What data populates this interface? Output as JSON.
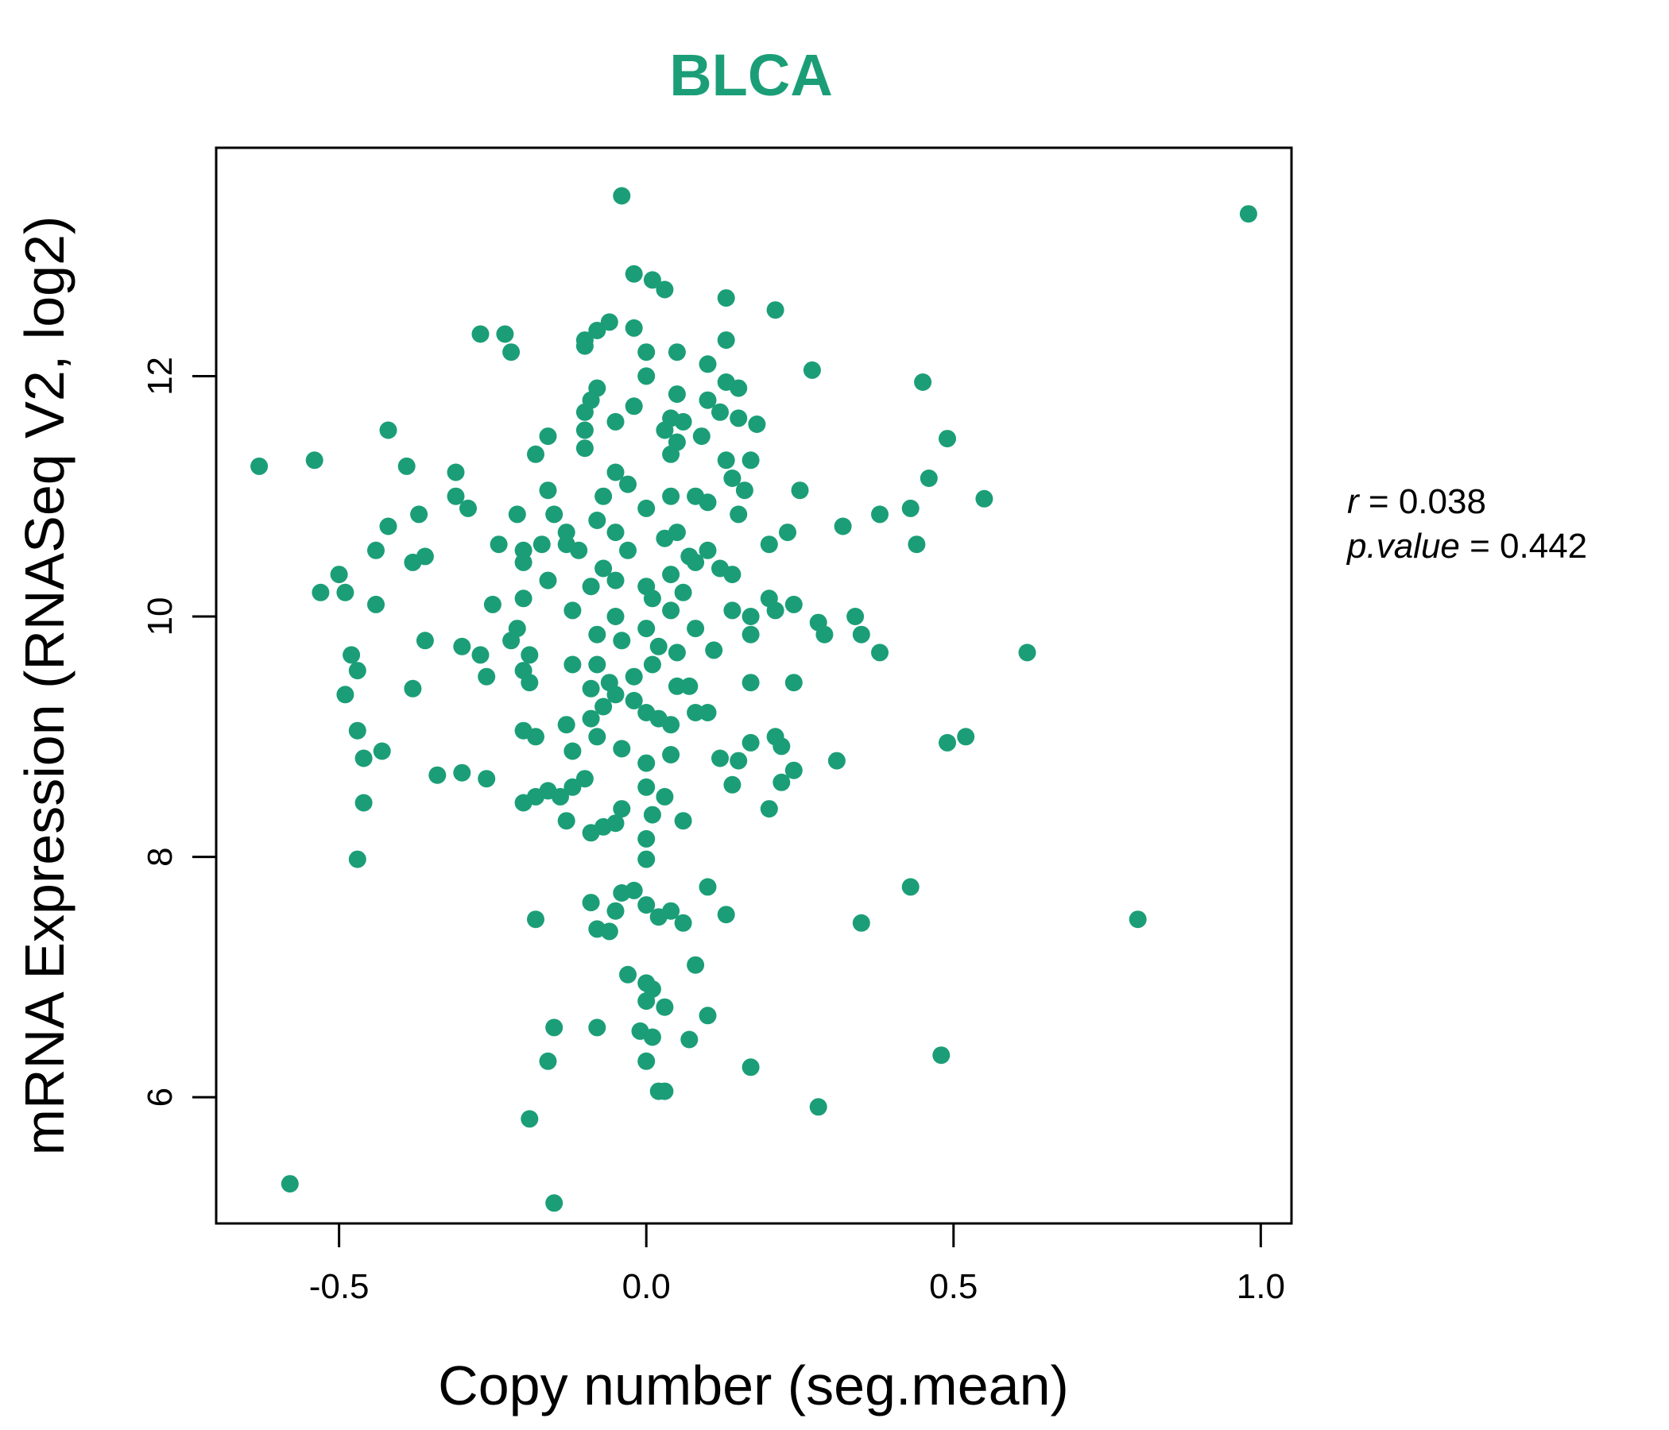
{
  "chart_data": {
    "type": "scatter",
    "title": "BLCA",
    "xlabel": "Copy number (seg.mean)",
    "ylabel": "mRNA Expression (RNASeq V2, log2)",
    "xlim": [
      -0.7,
      1.05
    ],
    "ylim": [
      4.95,
      13.9
    ],
    "x_ticks": [
      -0.5,
      0.0,
      0.5,
      1.0
    ],
    "x_tick_labels": [
      "-0.5",
      "0.0",
      "0.5",
      "1.0"
    ],
    "y_ticks": [
      6,
      8,
      10,
      12
    ],
    "y_tick_labels": [
      "6",
      "8",
      "10",
      "12"
    ],
    "grid": false,
    "color": "#1b9e77",
    "stats": {
      "r_label": "r",
      "r_value": "0.038",
      "p_label": "p.value",
      "p_value": "0.442"
    },
    "points": [
      [
        -0.04,
        13.5
      ],
      [
        0.98,
        13.35
      ],
      [
        -0.02,
        12.85
      ],
      [
        0.01,
        12.8
      ],
      [
        0.03,
        12.72
      ],
      [
        0.13,
        12.65
      ],
      [
        0.21,
        12.55
      ],
      [
        -0.06,
        12.45
      ],
      [
        -0.02,
        12.4
      ],
      [
        -0.27,
        12.35
      ],
      [
        -0.23,
        12.35
      ],
      [
        -0.08,
        12.38
      ],
      [
        -0.1,
        12.3
      ],
      [
        0.13,
        12.3
      ],
      [
        -0.22,
        12.2
      ],
      [
        0.0,
        12.2
      ],
      [
        0.05,
        12.2
      ],
      [
        -0.1,
        12.25
      ],
      [
        0.1,
        12.1
      ],
      [
        0.27,
        12.05
      ],
      [
        0.0,
        12.0
      ],
      [
        0.13,
        11.95
      ],
      [
        0.45,
        11.95
      ],
      [
        0.15,
        11.9
      ],
      [
        -0.08,
        11.9
      ],
      [
        -0.09,
        11.8
      ],
      [
        0.05,
        11.85
      ],
      [
        -0.02,
        11.75
      ],
      [
        0.1,
        11.8
      ],
      [
        -0.1,
        11.7
      ],
      [
        0.12,
        11.7
      ],
      [
        0.04,
        11.65
      ],
      [
        0.06,
        11.62
      ],
      [
        0.15,
        11.65
      ],
      [
        0.18,
        11.6
      ],
      [
        -0.05,
        11.62
      ],
      [
        -0.42,
        11.55
      ],
      [
        -0.1,
        11.55
      ],
      [
        0.03,
        11.55
      ],
      [
        -0.16,
        11.5
      ],
      [
        0.09,
        11.5
      ],
      [
        0.49,
        11.48
      ],
      [
        0.05,
        11.45
      ],
      [
        -0.1,
        11.4
      ],
      [
        -0.18,
        11.35
      ],
      [
        0.04,
        11.35
      ],
      [
        0.13,
        11.3
      ],
      [
        0.17,
        11.3
      ],
      [
        -0.54,
        11.3
      ],
      [
        -0.63,
        11.25
      ],
      [
        -0.39,
        11.25
      ],
      [
        -0.05,
        11.2
      ],
      [
        -0.31,
        11.2
      ],
      [
        0.14,
        11.15
      ],
      [
        0.46,
        11.15
      ],
      [
        -0.03,
        11.1
      ],
      [
        0.25,
        11.05
      ],
      [
        0.16,
        11.05
      ],
      [
        -0.16,
        11.05
      ],
      [
        -0.07,
        11.0
      ],
      [
        -0.31,
        11.0
      ],
      [
        0.55,
        10.98
      ],
      [
        0.04,
        11.0
      ],
      [
        0.08,
        11.0
      ],
      [
        -0.29,
        10.9
      ],
      [
        0.0,
        10.9
      ],
      [
        -0.21,
        10.85
      ],
      [
        -0.15,
        10.85
      ],
      [
        0.1,
        10.95
      ],
      [
        -0.08,
        10.8
      ],
      [
        0.38,
        10.85
      ],
      [
        0.43,
        10.9
      ],
      [
        0.15,
        10.85
      ],
      [
        -0.37,
        10.85
      ],
      [
        -0.42,
        10.75
      ],
      [
        0.32,
        10.75
      ],
      [
        0.05,
        10.7
      ],
      [
        -0.13,
        10.7
      ],
      [
        -0.05,
        10.7
      ],
      [
        0.23,
        10.7
      ],
      [
        0.03,
        10.65
      ],
      [
        -0.24,
        10.6
      ],
      [
        -0.17,
        10.6
      ],
      [
        -0.13,
        10.6
      ],
      [
        0.44,
        10.6
      ],
      [
        0.2,
        10.6
      ],
      [
        -0.11,
        10.55
      ],
      [
        -0.44,
        10.55
      ],
      [
        0.07,
        10.5
      ],
      [
        0.1,
        10.55
      ],
      [
        -0.2,
        10.55
      ],
      [
        -0.36,
        10.5
      ],
      [
        -0.03,
        10.55
      ],
      [
        0.08,
        10.45
      ],
      [
        -0.38,
        10.45
      ],
      [
        -0.07,
        10.4
      ],
      [
        -0.2,
        10.45
      ],
      [
        0.12,
        10.4
      ],
      [
        0.04,
        10.35
      ],
      [
        0.14,
        10.35
      ],
      [
        -0.16,
        10.3
      ],
      [
        -0.05,
        10.3
      ],
      [
        -0.5,
        10.35
      ],
      [
        0.0,
        10.25
      ],
      [
        -0.09,
        10.25
      ],
      [
        -0.53,
        10.2
      ],
      [
        -0.49,
        10.2
      ],
      [
        0.06,
        10.2
      ],
      [
        -0.2,
        10.15
      ],
      [
        0.2,
        10.15
      ],
      [
        -0.25,
        10.1
      ],
      [
        -0.44,
        10.1
      ],
      [
        0.24,
        10.1
      ],
      [
        0.01,
        10.15
      ],
      [
        -0.12,
        10.05
      ],
      [
        0.04,
        10.05
      ],
      [
        0.14,
        10.05
      ],
      [
        0.21,
        10.05
      ],
      [
        0.34,
        10.0
      ],
      [
        -0.05,
        10.0
      ],
      [
        0.17,
        10.0
      ],
      [
        0.28,
        9.95
      ],
      [
        -0.21,
        9.9
      ],
      [
        0.0,
        9.9
      ],
      [
        0.08,
        9.9
      ],
      [
        -0.08,
        9.85
      ],
      [
        0.29,
        9.85
      ],
      [
        0.35,
        9.85
      ],
      [
        0.17,
        9.85
      ],
      [
        -0.36,
        9.8
      ],
      [
        -0.22,
        9.8
      ],
      [
        -0.04,
        9.8
      ],
      [
        0.02,
        9.75
      ],
      [
        -0.3,
        9.75
      ],
      [
        0.62,
        9.7
      ],
      [
        0.38,
        9.7
      ],
      [
        -0.48,
        9.68
      ],
      [
        -0.27,
        9.68
      ],
      [
        -0.19,
        9.68
      ],
      [
        0.05,
        9.7
      ],
      [
        0.11,
        9.72
      ],
      [
        -0.08,
        9.6
      ],
      [
        0.01,
        9.6
      ],
      [
        -0.12,
        9.6
      ],
      [
        -0.2,
        9.55
      ],
      [
        -0.47,
        9.55
      ],
      [
        -0.26,
        9.5
      ],
      [
        -0.02,
        9.5
      ],
      [
        -0.19,
        9.45
      ],
      [
        0.17,
        9.45
      ],
      [
        0.24,
        9.45
      ],
      [
        -0.06,
        9.45
      ],
      [
        0.05,
        9.42
      ],
      [
        -0.09,
        9.4
      ],
      [
        0.07,
        9.42
      ],
      [
        -0.38,
        9.4
      ],
      [
        -0.05,
        9.35
      ],
      [
        -0.49,
        9.35
      ],
      [
        -0.02,
        9.3
      ],
      [
        -0.07,
        9.25
      ],
      [
        0.08,
        9.2
      ],
      [
        0.1,
        9.2
      ],
      [
        0.0,
        9.2
      ],
      [
        0.02,
        9.15
      ],
      [
        -0.09,
        9.15
      ],
      [
        -0.13,
        9.1
      ],
      [
        0.04,
        9.1
      ],
      [
        -0.2,
        9.05
      ],
      [
        -0.47,
        9.05
      ],
      [
        -0.08,
        9.0
      ],
      [
        0.21,
        9.0
      ],
      [
        -0.18,
        9.0
      ],
      [
        0.52,
        9.0
      ],
      [
        0.17,
        8.95
      ],
      [
        0.49,
        8.95
      ],
      [
        -0.04,
        8.9
      ],
      [
        0.22,
        8.92
      ],
      [
        -0.12,
        8.88
      ],
      [
        -0.43,
        8.88
      ],
      [
        0.04,
        8.85
      ],
      [
        0.12,
        8.82
      ],
      [
        0.15,
        8.8
      ],
      [
        -0.46,
        8.82
      ],
      [
        0.31,
        8.8
      ],
      [
        0.0,
        8.78
      ],
      [
        0.24,
        8.72
      ],
      [
        -0.34,
        8.68
      ],
      [
        -0.3,
        8.7
      ],
      [
        -0.26,
        8.65
      ],
      [
        -0.1,
        8.65
      ],
      [
        0.22,
        8.62
      ],
      [
        0.14,
        8.6
      ],
      [
        0.0,
        8.58
      ],
      [
        -0.12,
        8.58
      ],
      [
        -0.16,
        8.55
      ],
      [
        0.03,
        8.5
      ],
      [
        -0.18,
        8.5
      ],
      [
        -0.14,
        8.5
      ],
      [
        -0.46,
        8.45
      ],
      [
        -0.2,
        8.45
      ],
      [
        0.2,
        8.4
      ],
      [
        -0.04,
        8.4
      ],
      [
        0.01,
        8.35
      ],
      [
        -0.13,
        8.3
      ],
      [
        0.06,
        8.3
      ],
      [
        -0.05,
        8.28
      ],
      [
        -0.07,
        8.25
      ],
      [
        -0.09,
        8.2
      ],
      [
        0.0,
        8.15
      ],
      [
        0.0,
        7.98
      ],
      [
        -0.47,
        7.98
      ],
      [
        0.1,
        7.75
      ],
      [
        0.43,
        7.75
      ],
      [
        -0.02,
        7.72
      ],
      [
        -0.04,
        7.7
      ],
      [
        -0.09,
        7.62
      ],
      [
        0.0,
        7.6
      ],
      [
        -0.05,
        7.55
      ],
      [
        0.04,
        7.55
      ],
      [
        0.02,
        7.5
      ],
      [
        0.13,
        7.52
      ],
      [
        -0.18,
        7.48
      ],
      [
        0.35,
        7.45
      ],
      [
        0.8,
        7.48
      ],
      [
        0.06,
        7.45
      ],
      [
        -0.08,
        7.4
      ],
      [
        -0.06,
        7.38
      ],
      [
        0.08,
        7.1
      ],
      [
        -0.03,
        7.02
      ],
      [
        0.0,
        6.95
      ],
      [
        0.01,
        6.9
      ],
      [
        0.0,
        6.8
      ],
      [
        0.03,
        6.75
      ],
      [
        0.1,
        6.68
      ],
      [
        -0.15,
        6.58
      ],
      [
        -0.08,
        6.58
      ],
      [
        -0.01,
        6.55
      ],
      [
        0.01,
        6.5
      ],
      [
        0.07,
        6.48
      ],
      [
        0.48,
        6.35
      ],
      [
        0.0,
        6.3
      ],
      [
        -0.16,
        6.3
      ],
      [
        0.17,
        6.25
      ],
      [
        0.02,
        6.05
      ],
      [
        0.03,
        6.05
      ],
      [
        0.28,
        5.92
      ],
      [
        -0.19,
        5.82
      ],
      [
        -0.58,
        5.28
      ],
      [
        -0.15,
        5.12
      ]
    ]
  }
}
